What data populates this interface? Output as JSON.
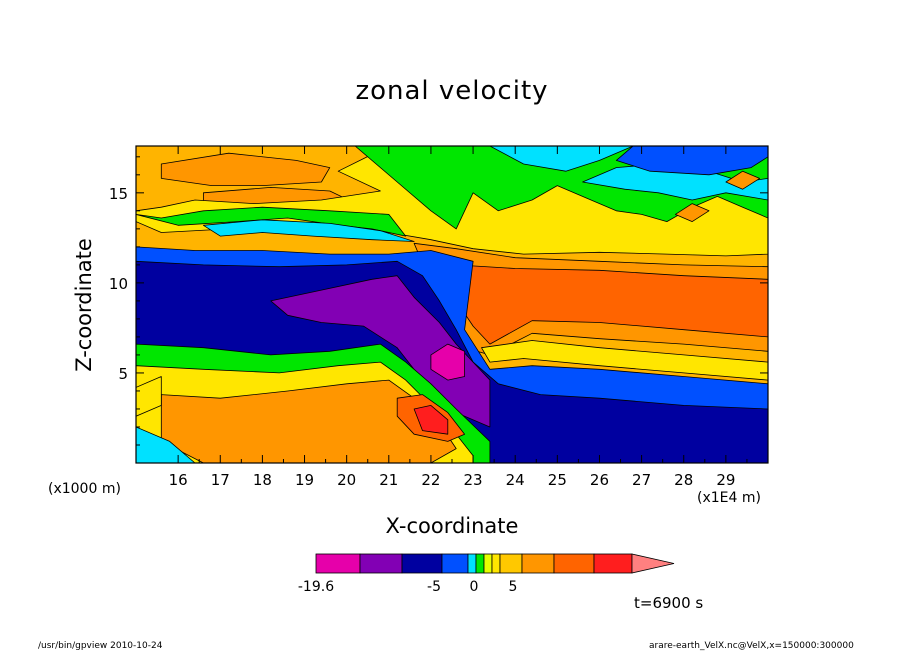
{
  "chart_data": {
    "type": "heatmap",
    "title": "zonal velocity",
    "xlabel": "X-coordinate",
    "ylabel": "Z-coordinate",
    "x_unit_left": "(x1000 m)",
    "x_unit_right": "(x1E4 m)",
    "xlim": [
      15.0,
      30.0
    ],
    "ylim": [
      0,
      17.6
    ],
    "x_ticks": [
      "16",
      "17",
      "18",
      "19",
      "20",
      "21",
      "22",
      "23",
      "24",
      "25",
      "26",
      "27",
      "28",
      "29"
    ],
    "y_ticks": [
      "5",
      "10",
      "15"
    ],
    "colorbar": {
      "labels": [
        "-19.6",
        "-5",
        "0",
        "5"
      ],
      "colors": [
        "#e600aa",
        "#8200b4",
        "#0000a0",
        "#0050ff",
        "#00e1ff",
        "#00e600",
        "#e6ff00",
        "#ffe600",
        "#ffc800",
        "#ff9600",
        "#ff6400",
        "#ff1e1e",
        "#ff8080"
      ]
    },
    "layers": [
      {
        "color": "#ffb400",
        "points": [
          [
            15,
            17.6
          ],
          [
            30,
            17.6
          ],
          [
            30,
            0
          ],
          [
            15,
            0
          ]
        ]
      },
      {
        "color": "#ff9600",
        "points": [
          [
            15.6,
            16.6
          ],
          [
            17.2,
            17.2
          ],
          [
            18.8,
            16.8
          ],
          [
            19.6,
            16.4
          ],
          [
            19.4,
            15.6
          ],
          [
            18.0,
            15.4
          ],
          [
            16.8,
            15.4
          ],
          [
            15.6,
            15.8
          ]
        ]
      },
      {
        "color": "#ff9600",
        "points": [
          [
            16.6,
            15.0
          ],
          [
            18.2,
            15.3
          ],
          [
            19.6,
            15.1
          ],
          [
            20.4,
            14.2
          ],
          [
            19.4,
            13.8
          ],
          [
            17.6,
            14.0
          ],
          [
            16.6,
            14.4
          ]
        ]
      },
      {
        "color": "#ffe600",
        "points": [
          [
            15,
            13.4
          ],
          [
            15.6,
            12.8
          ],
          [
            17.2,
            13.0
          ],
          [
            18.6,
            13.2
          ],
          [
            20.2,
            13.0
          ],
          [
            21.0,
            12.8
          ],
          [
            22.0,
            12.4
          ],
          [
            23.0,
            11.9
          ],
          [
            24.2,
            11.6
          ],
          [
            26.0,
            11.7
          ],
          [
            27.6,
            11.6
          ],
          [
            29.0,
            11.5
          ],
          [
            30,
            11.6
          ],
          [
            30,
            17.6
          ],
          [
            21.0,
            17.6
          ],
          [
            20.4,
            16.9
          ],
          [
            19.8,
            16.2
          ],
          [
            20.8,
            15.1
          ],
          [
            19.4,
            14.6
          ],
          [
            17.8,
            14.4
          ],
          [
            16.4,
            14.6
          ],
          [
            15.6,
            14.2
          ],
          [
            15,
            14.0
          ]
        ]
      },
      {
        "color": "#00e600",
        "points": [
          [
            20.2,
            17.6
          ],
          [
            21.2,
            15.6
          ],
          [
            22.0,
            14.0
          ],
          [
            22.6,
            13.0
          ],
          [
            23.0,
            15.0
          ],
          [
            23.6,
            14.0
          ],
          [
            24.4,
            14.6
          ],
          [
            25.0,
            15.4
          ],
          [
            25.8,
            14.6
          ],
          [
            26.4,
            14.0
          ],
          [
            27.0,
            13.8
          ],
          [
            27.6,
            13.4
          ],
          [
            28.2,
            14.2
          ],
          [
            28.8,
            14.8
          ],
          [
            29.4,
            14.2
          ],
          [
            30,
            13.6
          ],
          [
            30,
            17.6
          ]
        ]
      },
      {
        "color": "#00e600",
        "points": [
          [
            15,
            13.8
          ],
          [
            16.0,
            13.2
          ],
          [
            17.4,
            13.4
          ],
          [
            18.6,
            13.6
          ],
          [
            19.8,
            13.2
          ],
          [
            20.6,
            13.0
          ],
          [
            21.4,
            12.6
          ],
          [
            21.0,
            13.8
          ],
          [
            19.6,
            14.0
          ],
          [
            18.0,
            14.2
          ],
          [
            16.6,
            14.0
          ],
          [
            15.6,
            13.6
          ]
        ]
      },
      {
        "color": "#00e1ff",
        "points": [
          [
            16.6,
            13.2
          ],
          [
            18.0,
            13.5
          ],
          [
            19.6,
            13.3
          ],
          [
            20.8,
            12.9
          ],
          [
            21.6,
            12.3
          ],
          [
            20.6,
            12.4
          ],
          [
            19.2,
            12.6
          ],
          [
            18.0,
            12.8
          ],
          [
            17.0,
            12.6
          ]
        ]
      },
      {
        "color": "#00e1ff",
        "points": [
          [
            23.4,
            17.6
          ],
          [
            24.2,
            16.6
          ],
          [
            25.2,
            16.2
          ],
          [
            26.0,
            16.8
          ],
          [
            26.8,
            17.6
          ]
        ]
      },
      {
        "color": "#00e1ff",
        "points": [
          [
            25.6,
            15.6
          ],
          [
            26.4,
            16.4
          ],
          [
            27.4,
            16.6
          ],
          [
            28.6,
            16.2
          ],
          [
            29.4,
            15.6
          ],
          [
            30,
            15.8
          ],
          [
            30,
            14.6
          ],
          [
            29.0,
            15.0
          ],
          [
            28.2,
            14.6
          ],
          [
            27.4,
            15.0
          ],
          [
            26.6,
            15.2
          ]
        ]
      },
      {
        "color": "#0050ff",
        "points": [
          [
            26.8,
            17.6
          ],
          [
            26.4,
            16.8
          ],
          [
            27.2,
            16.2
          ],
          [
            28.6,
            16.0
          ],
          [
            29.6,
            16.4
          ],
          [
            30,
            17.0
          ],
          [
            30,
            17.6
          ]
        ]
      },
      {
        "color": "#ff9600",
        "points": [
          [
            21.6,
            12.2
          ],
          [
            22.6,
            11.9
          ],
          [
            24.0,
            11.4
          ],
          [
            26.0,
            11.2
          ],
          [
            28.0,
            11.0
          ],
          [
            30,
            10.9
          ],
          [
            30,
            6.2
          ],
          [
            28.0,
            6.6
          ],
          [
            26.0,
            6.9
          ],
          [
            24.4,
            7.2
          ],
          [
            23.4,
            6.0
          ],
          [
            22.8,
            6.4
          ],
          [
            22.4,
            8.0
          ],
          [
            22.0,
            10.0
          ]
        ]
      },
      {
        "color": "#ff6400",
        "points": [
          [
            22.6,
            11.0
          ],
          [
            24.0,
            10.8
          ],
          [
            26.0,
            10.7
          ],
          [
            28.0,
            10.4
          ],
          [
            30,
            10.2
          ],
          [
            30,
            7.0
          ],
          [
            28.0,
            7.4
          ],
          [
            26.0,
            7.8
          ],
          [
            24.4,
            7.9
          ],
          [
            23.4,
            6.6
          ],
          [
            23.0,
            7.6
          ],
          [
            22.6,
            9.0
          ]
        ]
      },
      {
        "color": "#ffe600",
        "points": [
          [
            23.2,
            6.4
          ],
          [
            24.4,
            6.8
          ],
          [
            26.0,
            6.4
          ],
          [
            28.0,
            6.0
          ],
          [
            30,
            5.6
          ],
          [
            30,
            4.6
          ],
          [
            28.0,
            5.0
          ],
          [
            26.0,
            5.4
          ],
          [
            24.2,
            5.8
          ],
          [
            23.4,
            5.6
          ]
        ]
      },
      {
        "color": "#0050ff",
        "points": [
          [
            15,
            12.0
          ],
          [
            16.4,
            11.8
          ],
          [
            18.0,
            11.8
          ],
          [
            19.6,
            11.6
          ],
          [
            21.0,
            11.6
          ],
          [
            22.0,
            11.8
          ],
          [
            23.0,
            11.2
          ],
          [
            22.8,
            7.4
          ],
          [
            23.4,
            5.2
          ],
          [
            24.4,
            5.4
          ],
          [
            26.0,
            5.2
          ],
          [
            28.0,
            4.8
          ],
          [
            30,
            4.4
          ],
          [
            30,
            0
          ],
          [
            15,
            0
          ],
          [
            15,
            6.8
          ]
        ]
      },
      {
        "color": "#0000a0",
        "points": [
          [
            15,
            11.2
          ],
          [
            16.6,
            11.0
          ],
          [
            18.4,
            10.9
          ],
          [
            20.0,
            11.0
          ],
          [
            21.2,
            11.2
          ],
          [
            21.8,
            10.4
          ],
          [
            22.2,
            9.0
          ],
          [
            22.6,
            7.4
          ],
          [
            23.0,
            5.6
          ],
          [
            23.6,
            4.4
          ],
          [
            24.6,
            3.8
          ],
          [
            26.0,
            3.6
          ],
          [
            28.0,
            3.2
          ],
          [
            30,
            3.0
          ],
          [
            30,
            0
          ],
          [
            23.4,
            0
          ],
          [
            21.6,
            2.0
          ],
          [
            20.0,
            4.0
          ],
          [
            17.6,
            5.0
          ],
          [
            15,
            6.0
          ]
        ]
      },
      {
        "color": "#8200b4",
        "points": [
          [
            18.2,
            9.0
          ],
          [
            19.4,
            9.6
          ],
          [
            20.6,
            10.2
          ],
          [
            21.2,
            10.4
          ],
          [
            21.6,
            9.2
          ],
          [
            22.2,
            7.8
          ],
          [
            22.6,
            6.6
          ],
          [
            23.4,
            4.6
          ],
          [
            23.4,
            2.0
          ],
          [
            22.6,
            2.8
          ],
          [
            21.8,
            4.6
          ],
          [
            21.2,
            6.4
          ],
          [
            20.4,
            7.6
          ],
          [
            19.4,
            7.8
          ],
          [
            18.6,
            8.2
          ]
        ]
      },
      {
        "color": "#e600aa",
        "points": [
          [
            22.0,
            6.0
          ],
          [
            22.4,
            6.6
          ],
          [
            22.8,
            6.2
          ],
          [
            22.8,
            4.8
          ],
          [
            22.4,
            4.6
          ],
          [
            22.0,
            5.2
          ]
        ]
      },
      {
        "color": "#00e600",
        "points": [
          [
            15,
            6.6
          ],
          [
            16.6,
            6.4
          ],
          [
            18.2,
            6.0
          ],
          [
            19.6,
            6.2
          ],
          [
            20.8,
            6.6
          ],
          [
            21.4,
            5.6
          ],
          [
            22.0,
            4.4
          ],
          [
            22.6,
            3.0
          ],
          [
            23.4,
            1.2
          ],
          [
            23.4,
            0
          ],
          [
            15,
            0
          ]
        ]
      },
      {
        "color": "#ffe600",
        "points": [
          [
            15,
            5.4
          ],
          [
            16.6,
            5.2
          ],
          [
            18.4,
            5.0
          ],
          [
            19.8,
            5.4
          ],
          [
            20.8,
            5.6
          ],
          [
            21.4,
            4.6
          ],
          [
            22.0,
            3.2
          ],
          [
            22.6,
            1.6
          ],
          [
            23.0,
            0.4
          ],
          [
            23.0,
            0
          ],
          [
            15,
            0
          ]
        ]
      },
      {
        "color": "#ff9600",
        "points": [
          [
            15.6,
            3.8
          ],
          [
            17.0,
            3.6
          ],
          [
            18.6,
            4.0
          ],
          [
            20.0,
            4.4
          ],
          [
            21.0,
            4.6
          ],
          [
            21.6,
            3.6
          ],
          [
            22.2,
            2.2
          ],
          [
            22.6,
            0.8
          ],
          [
            22.0,
            0
          ],
          [
            16.6,
            0
          ],
          [
            15.6,
            1.2
          ]
        ]
      },
      {
        "color": "#ff6400",
        "points": [
          [
            21.2,
            3.6
          ],
          [
            21.8,
            3.8
          ],
          [
            22.4,
            2.8
          ],
          [
            22.8,
            1.6
          ],
          [
            22.4,
            1.2
          ],
          [
            21.6,
            1.6
          ],
          [
            21.2,
            2.6
          ]
        ]
      },
      {
        "color": "#ff1e1e",
        "points": [
          [
            21.6,
            3.0
          ],
          [
            22.0,
            3.2
          ],
          [
            22.4,
            2.4
          ],
          [
            22.4,
            1.6
          ],
          [
            21.8,
            1.8
          ]
        ]
      },
      {
        "color": "#ffe600",
        "points": [
          [
            15,
            4.2
          ],
          [
            15.6,
            4.8
          ],
          [
            15.6,
            3.2
          ],
          [
            15,
            2.6
          ]
        ]
      },
      {
        "color": "#00e1ff",
        "points": [
          [
            15,
            2.0
          ],
          [
            15.8,
            1.2
          ],
          [
            16.4,
            0
          ],
          [
            15,
            0
          ]
        ]
      },
      {
        "color": "#ff9600",
        "points": [
          [
            27.8,
            13.8
          ],
          [
            28.2,
            14.4
          ],
          [
            28.6,
            14.0
          ],
          [
            28.2,
            13.4
          ]
        ]
      },
      {
        "color": "#ff9600",
        "points": [
          [
            29.0,
            15.6
          ],
          [
            29.4,
            16.2
          ],
          [
            29.8,
            15.8
          ],
          [
            29.4,
            15.2
          ]
        ]
      }
    ]
  },
  "colorbar_labels": {
    "min": "-19.6",
    "neg5": "-5",
    "zero": "0",
    "pos5": "5"
  },
  "annotations": {
    "time": "t=6900 s",
    "footer_left": "/usr/bin/gpview   2010-10-24",
    "footer_right": "arare-earth_VelX.nc@VelX,x=150000:300000"
  }
}
